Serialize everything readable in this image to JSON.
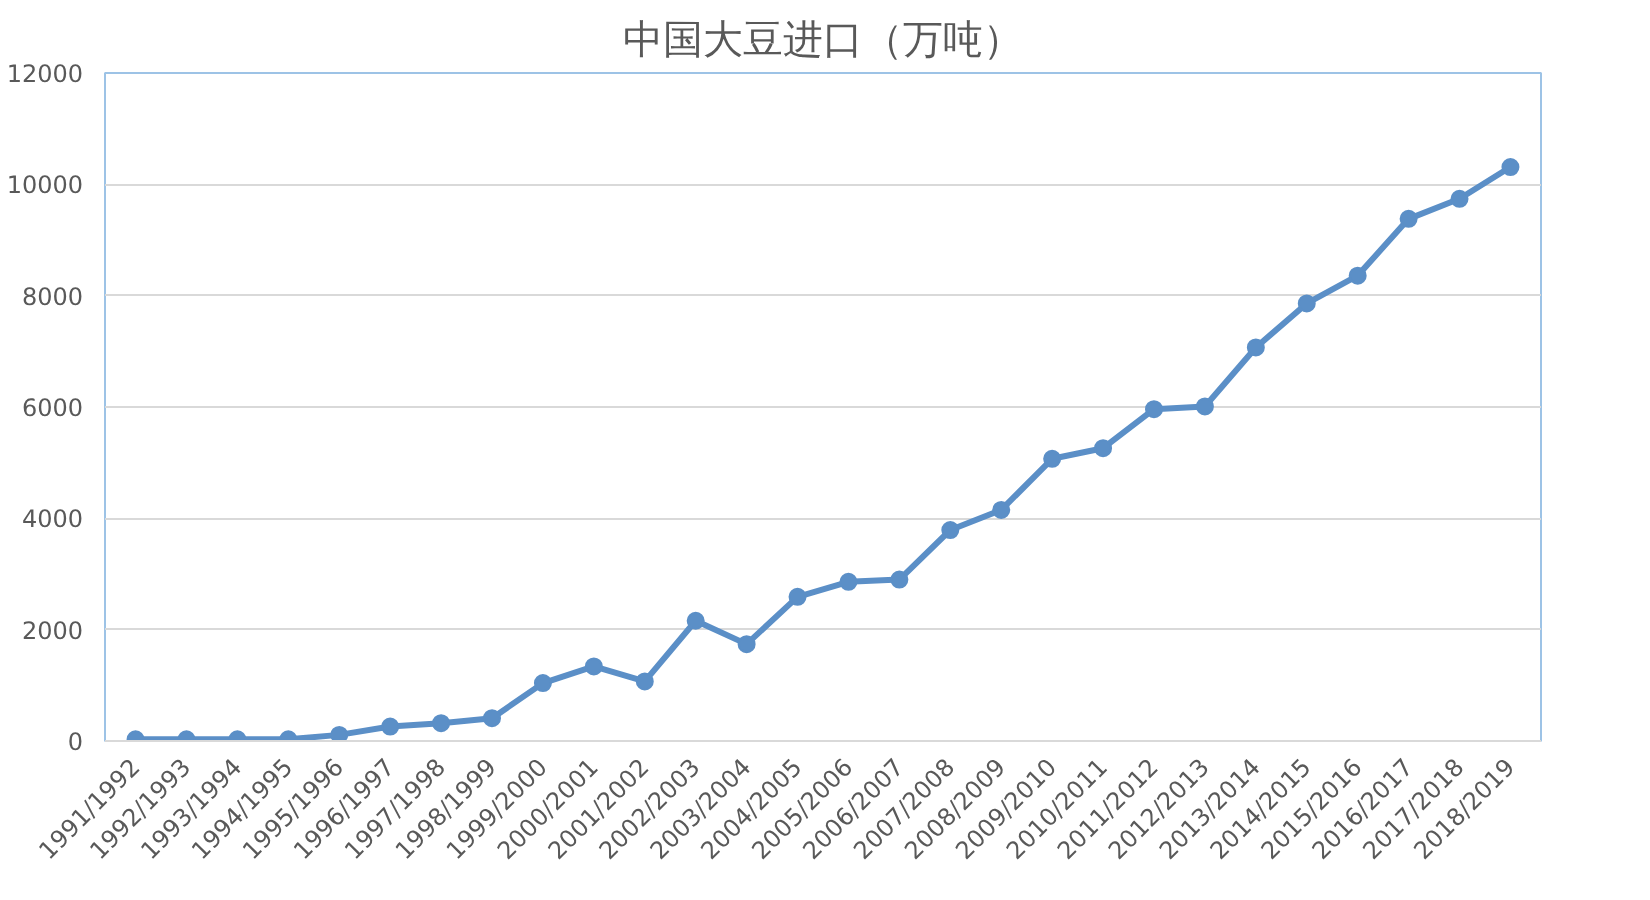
{
  "chart_data": {
    "type": "line",
    "title": "中国大豆进口（万吨）",
    "categories": [
      "1991/1992",
      "1992/1993",
      "1993/1994",
      "1994/1995",
      "1995/1996",
      "1996/1997",
      "1997/1998",
      "1998/1999",
      "1999/2000",
      "2000/2001",
      "2001/2002",
      "2002/2003",
      "2003/2004",
      "2004/2005",
      "2005/2006",
      "2006/2007",
      "2007/2008",
      "2008/2009",
      "2009/2010",
      "2010/2011",
      "2011/2012",
      "2012/2013",
      "2013/2014",
      "2014/2015",
      "2015/2016",
      "2016/2017",
      "2017/2018",
      "2018/2019"
    ],
    "series": [
      {
        "color": "#5b8fc7",
        "values": [
          30,
          30,
          30,
          30,
          110,
          260,
          320,
          410,
          1040,
          1340,
          1070,
          2160,
          1740,
          2590,
          2860,
          2900,
          3790,
          4150,
          5070,
          5260,
          5960,
          6010,
          7070,
          7860,
          8360,
          9380,
          9740,
          10310
        ]
      }
    ],
    "ylim": [
      0,
      12000
    ],
    "yticks": [
      0,
      2000,
      4000,
      6000,
      8000,
      10000,
      12000
    ],
    "grid": "y",
    "marker": "circle",
    "line_style": "solid"
  }
}
